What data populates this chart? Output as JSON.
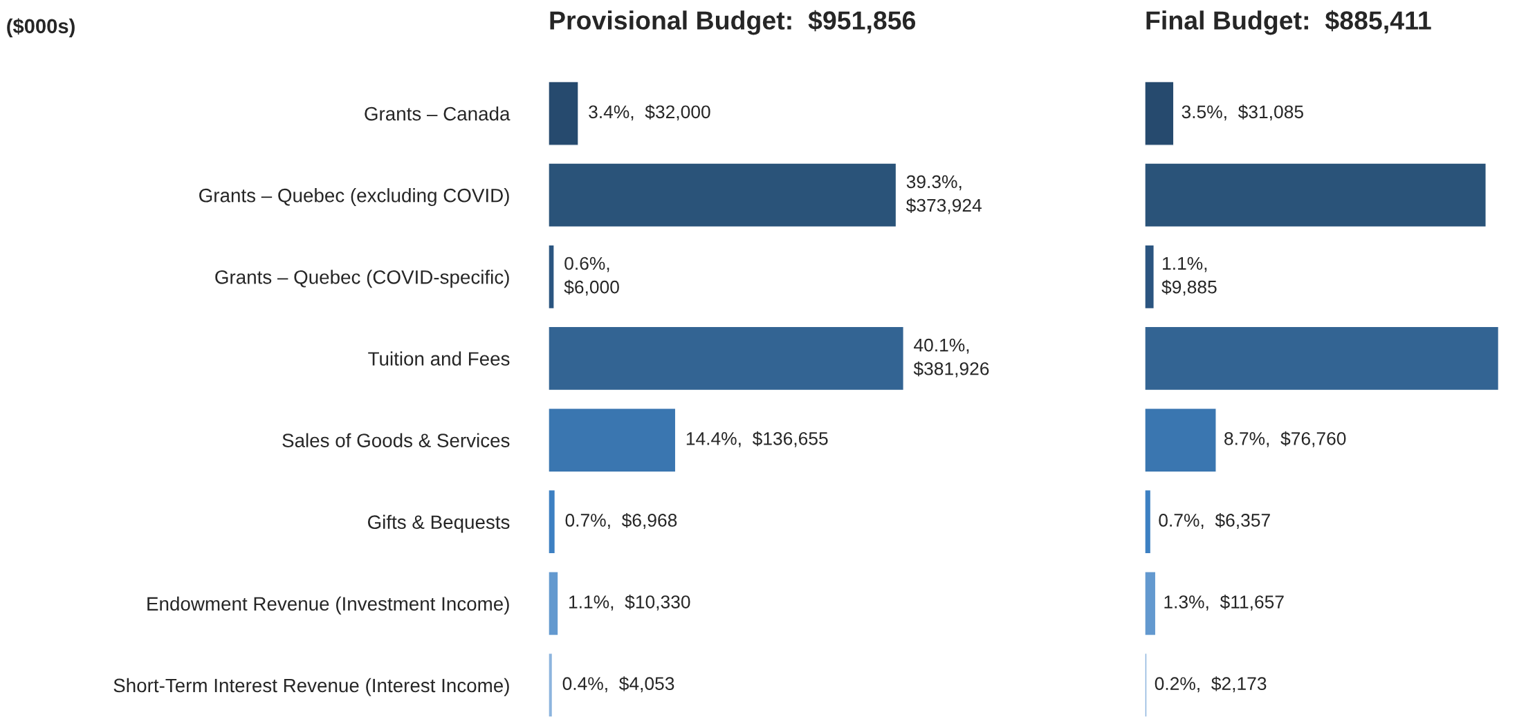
{
  "chart_data": [
    {
      "type": "bar",
      "orientation": "horizontal",
      "title": "Provisional Budget:  $951,856",
      "annotations": [
        "($000s)"
      ],
      "categories": [
        "Grants – Canada",
        "Grants – Quebec (excluding COVID)",
        "Grants – Quebec (COVID-specific)",
        "Tuition and Fees",
        "Sales of Goods & Services",
        "Gifts & Bequests",
        "Endowment Revenue (Investment Income)",
        "Short-Term Interest Revenue (Interest Income)"
      ],
      "values": [
        32000,
        373924,
        6000,
        381926,
        136655,
        6968,
        10330,
        4053
      ],
      "value_labels": [
        "3.4%,  $32,000",
        "39.3%,\n$373,924",
        "0.6%,\n$6,000",
        "40.1%,\n$381,926",
        "14.4%,  $136,655",
        "0.7%,  $6,968",
        "1.1%,  $10,330",
        "0.4%,  $4,053"
      ],
      "colors": [
        "#264a6e",
        "#2a5379",
        "#2b5580",
        "#336493",
        "#3a76b0",
        "#3d80c2",
        "#6399cf",
        "#8db5de"
      ]
    },
    {
      "type": "bar",
      "orientation": "horizontal",
      "title": "Final Budget:  $885,411",
      "categories": [
        null,
        null,
        null,
        null,
        null,
        null,
        null,
        null
      ],
      "values": [
        31085,
        367000,
        9885,
        380500,
        76760,
        6357,
        11657,
        2173
      ],
      "value_labels": [
        "3.5%,  $31,085",
        null,
        "1.1%,\n$9,885",
        null,
        "8.7%,  $76,760",
        "0.7%,  $6,357",
        "1.3%,  $11,657",
        "0.2%,  $2,173"
      ],
      "colors": [
        "#264a6e",
        "#2a5379",
        "#2b5580",
        "#336493",
        "#3a76b0",
        "#3d80c2",
        "#6399cf",
        "#8db5de"
      ]
    }
  ]
}
